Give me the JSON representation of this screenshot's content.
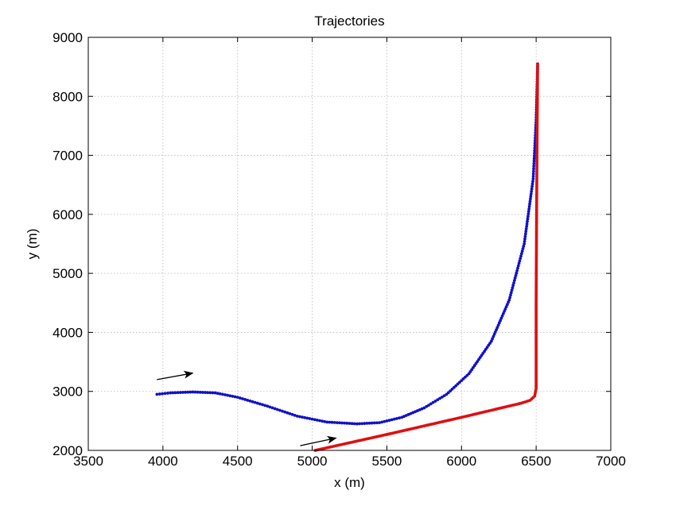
{
  "chart_data": {
    "type": "scatter",
    "title": "Trajectories",
    "xlabel": "x (m)",
    "ylabel": "y (m)",
    "xlim": [
      3500,
      7000
    ],
    "ylim": [
      2000,
      9000
    ],
    "xticks": [
      3500,
      4000,
      4500,
      5000,
      5500,
      6000,
      6500,
      7000
    ],
    "yticks": [
      2000,
      3000,
      4000,
      5000,
      6000,
      7000,
      8000,
      9000
    ],
    "grid": true,
    "series": [
      {
        "color": "#1010c8",
        "marker": "dot",
        "key_points": [
          [
            3960,
            2950
          ],
          [
            4050,
            2975
          ],
          [
            4200,
            2990
          ],
          [
            4350,
            2975
          ],
          [
            4500,
            2900
          ],
          [
            4700,
            2750
          ],
          [
            4900,
            2580
          ],
          [
            5100,
            2480
          ],
          [
            5300,
            2450
          ],
          [
            5450,
            2470
          ],
          [
            5600,
            2560
          ],
          [
            5750,
            2720
          ],
          [
            5900,
            2950
          ],
          [
            6050,
            3300
          ],
          [
            6200,
            3850
          ],
          [
            6320,
            4550
          ],
          [
            6420,
            5500
          ],
          [
            6480,
            6600
          ],
          [
            6500,
            7600
          ],
          [
            6510,
            8550
          ]
        ]
      },
      {
        "color": "#dd1010",
        "marker": "dot",
        "key_points": [
          [
            5020,
            2000
          ],
          [
            5500,
            2270
          ],
          [
            6000,
            2560
          ],
          [
            6400,
            2800
          ],
          [
            6460,
            2850
          ],
          [
            6490,
            2920
          ],
          [
            6500,
            3050
          ],
          [
            6500,
            3400
          ],
          [
            6500,
            4500
          ],
          [
            6503,
            6000
          ],
          [
            6507,
            7500
          ],
          [
            6510,
            8550
          ]
        ]
      }
    ],
    "annotations": [
      {
        "type": "arrow",
        "from": [
          3960,
          3200
        ],
        "to": [
          4200,
          3310
        ]
      },
      {
        "type": "arrow",
        "from": [
          4920,
          2080
        ],
        "to": [
          5160,
          2210
        ]
      }
    ]
  }
}
